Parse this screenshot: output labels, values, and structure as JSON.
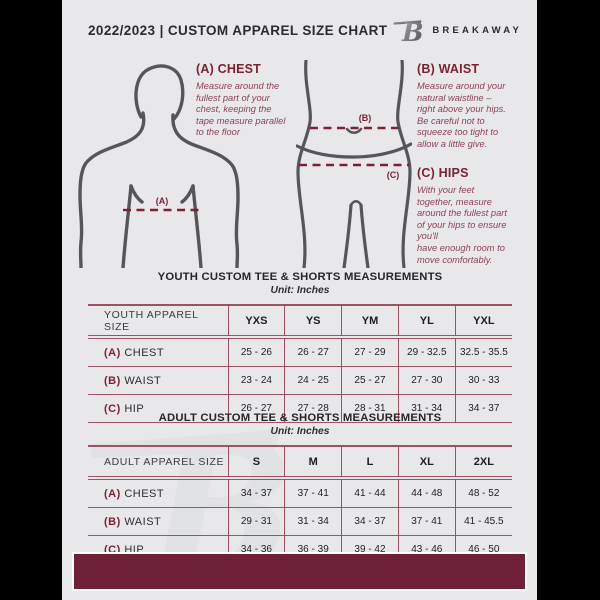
{
  "header": {
    "title": "2022/2023  |  CUSTOM APPAREL SIZE CHART",
    "brand": "BREAKAWAY",
    "logo_letter": "B"
  },
  "guide": {
    "labels": {
      "chest": "(A)",
      "waist": "(B)",
      "hips": "(C)"
    },
    "chest": {
      "heading": "(A) CHEST",
      "body": "Measure around the\nfullest part of your\nchest, keeping the\ntape measure parallel\nto the floor"
    },
    "waist": {
      "heading": "(B) WAIST",
      "body": "Measure around your\nnatural waistline –\nright above your hips.\nBe careful not to\nsqueeze too tight to\nallow a little give."
    },
    "hips": {
      "heading": "(C) HIPS",
      "body": "With your feet\ntogether, measure\naround the fullest part\nof your hips to ensure\nyou'll\nhave enough room to\nmove comfortably."
    }
  },
  "youth_table": {
    "title": "YOUTH CUSTOM TEE & SHORTS MEASUREMENTS",
    "unit": "Unit: Inches",
    "corner": "YOUTH APPAREL SIZE",
    "sizes": [
      "YXS",
      "YS",
      "YM",
      "YL",
      "YXL"
    ],
    "rows": [
      {
        "prefix": "(A)",
        "label": "CHEST",
        "values": [
          "25 - 26",
          "26 - 27",
          "27 - 29",
          "29 - 32.5",
          "32.5 - 35.5"
        ]
      },
      {
        "prefix": "(B)",
        "label": "WAIST",
        "values": [
          "23 - 24",
          "24 - 25",
          "25 - 27",
          "27 - 30",
          "30 - 33"
        ]
      },
      {
        "prefix": "(C)",
        "label": "HIP",
        "values": [
          "26 - 27",
          "27 - 28",
          "28 - 31",
          "31 - 34",
          "34 - 37"
        ]
      }
    ]
  },
  "adult_table": {
    "title": "ADULT CUSTOM TEE & SHORTS MEASUREMENTS",
    "unit": "Unit: Inches",
    "corner": "ADULT APPAREL SIZE",
    "sizes": [
      "S",
      "M",
      "L",
      "XL",
      "2XL"
    ],
    "rows": [
      {
        "prefix": "(A)",
        "label": "CHEST",
        "values": [
          "34 - 37",
          "37 - 41",
          "41 - 44",
          "44 - 48",
          "48 - 52"
        ]
      },
      {
        "prefix": "(B)",
        "label": "WAIST",
        "values": [
          "29 - 31",
          "31 - 34",
          "34 - 37",
          "37 - 41",
          "41 - 45.5"
        ]
      },
      {
        "prefix": "(C)",
        "label": "HIP",
        "values": [
          "34 - 36",
          "36 - 39",
          "39 - 42",
          "43 - 46",
          "46 - 50"
        ]
      }
    ]
  },
  "colors": {
    "page_bg": "#e8e8ea",
    "accent_maroon": "#7c2133",
    "paragraph_maroon": "#8d4156",
    "table_line": "#9d5263",
    "footer_bar": "#6f2138",
    "figure_stroke": "#55555a",
    "side_bars": "#000000"
  }
}
